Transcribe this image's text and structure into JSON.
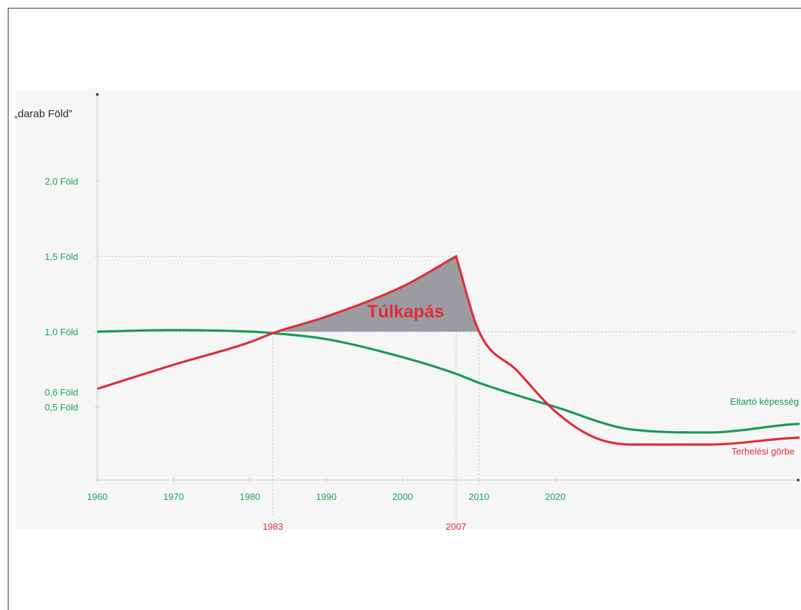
{
  "chart_data": {
    "type": "line",
    "ylabel": "„darab Föld”",
    "xlim": [
      1960,
      2050
    ],
    "ylim": [
      0,
      2.5
    ],
    "grid": false,
    "y_ticks": [
      {
        "value": 2.0,
        "label": "2,0 Föld"
      },
      {
        "value": 1.5,
        "label": "1,5 Föld"
      },
      {
        "value": 1.0,
        "label": "1,0 Föld"
      },
      {
        "value": 0.6,
        "label": "0,6 Föld"
      },
      {
        "value": 0.5,
        "label": "0,5 Föld"
      }
    ],
    "x_ticks": [
      {
        "value": 1960,
        "label": "1960"
      },
      {
        "value": 1970,
        "label": "1970"
      },
      {
        "value": 1980,
        "label": "1980"
      },
      {
        "value": 1990,
        "label": "1990"
      },
      {
        "value": 2000,
        "label": "2000"
      },
      {
        "value": 2010,
        "label": "2010"
      },
      {
        "value": 2020,
        "label": "2020"
      }
    ],
    "x_marks": [
      {
        "value": 1983,
        "label": "1983"
      },
      {
        "value": 2007,
        "label": "2007"
      }
    ],
    "series": [
      {
        "name": "Eltartó képesség",
        "color": "#159a55",
        "x": [
          1960,
          1970,
          1980,
          1983,
          1990,
          2000,
          2007,
          2010,
          2020,
          2030,
          2040,
          2050
        ],
        "y": [
          1.0,
          1.01,
          1.0,
          0.99,
          0.95,
          0.83,
          0.72,
          0.66,
          0.5,
          0.35,
          0.33,
          0.38
        ]
      },
      {
        "name": "Terhelési görbe",
        "color": "#e02d35",
        "x": [
          1960,
          1970,
          1980,
          1983,
          1990,
          2000,
          2007,
          2010,
          2015,
          2020,
          2025,
          2030,
          2040,
          2050
        ],
        "y": [
          0.62,
          0.78,
          0.93,
          0.99,
          1.1,
          1.3,
          1.5,
          1.0,
          0.74,
          0.47,
          0.3,
          0.25,
          0.25,
          0.29
        ]
      }
    ],
    "shaded_region": {
      "label": "Túlkapás",
      "from": 1983,
      "to": 2010,
      "color": "#9b9ca2"
    }
  }
}
